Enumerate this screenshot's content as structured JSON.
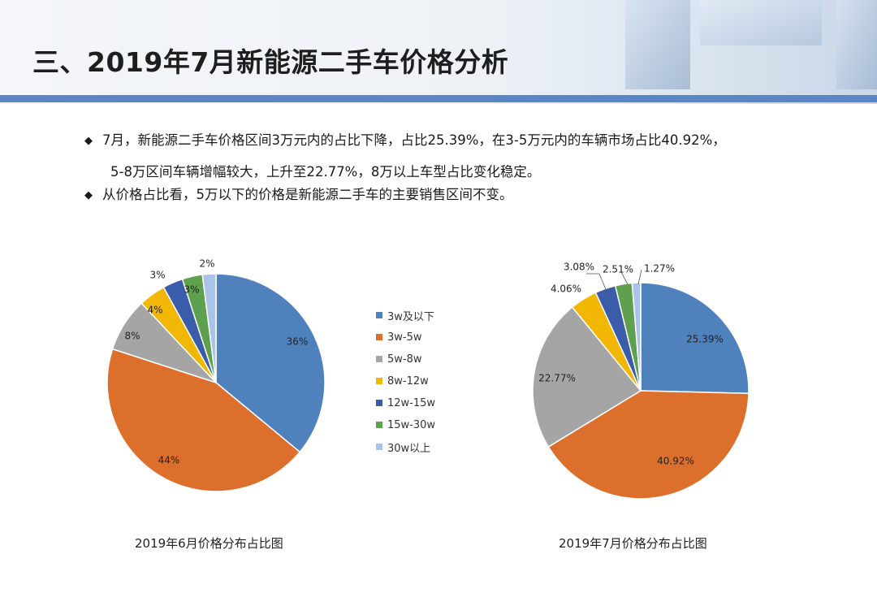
{
  "title": "三、2019年7月新能源二手车价格分析",
  "bullets": [
    {
      "mark": "◆",
      "line1": "7月，新能源二手车价格区间3万元内的占比下降，占比25.39%，在3-5万元内的车辆市场占比40.92%，",
      "line2": "5-8万区间车辆增幅较大，上升至22.77%，8万以上车型占比变化稳定。"
    },
    {
      "mark": "◆",
      "line1": "从价格占比看，5万以下的价格是新能源二手车的主要销售区间不变。",
      "line2": ""
    }
  ],
  "colors": {
    "header_bar": "#5b86c5"
  },
  "legend": [
    {
      "label": "3w及以下",
      "color": "#4f81bd"
    },
    {
      "label": "3w-5w",
      "color": "#dd6f2c"
    },
    {
      "label": "5w-8w",
      "color": "#a5a5a5"
    },
    {
      "label": "8w-12w",
      "color": "#f2b705"
    },
    {
      "label": "12w-15w",
      "color": "#3a5ca9"
    },
    {
      "label": "15w-30w",
      "color": "#5fa04e"
    },
    {
      "label": "30w以上",
      "color": "#a9c4e6"
    }
  ],
  "chart_data": [
    {
      "type": "pie",
      "title": "2019年6月价格分布占比图",
      "categories": [
        "3w及以下",
        "3w-5w",
        "5w-8w",
        "8w-12w",
        "12w-15w",
        "15w-30w",
        "30w以上"
      ],
      "values": [
        36,
        44,
        8,
        4,
        3,
        3,
        2
      ],
      "labels": [
        "36%",
        "44%",
        "8%",
        "4%",
        "3%",
        "3%",
        "2%"
      ]
    },
    {
      "type": "pie",
      "title": "2019年7月价格分布占比图",
      "categories": [
        "3w及以下",
        "3w-5w",
        "5w-8w",
        "8w-12w",
        "12w-15w",
        "15w-30w",
        "30w以上"
      ],
      "values": [
        25.39,
        40.92,
        22.77,
        4.06,
        3.08,
        2.51,
        1.27
      ],
      "labels": [
        "25.39%",
        "40.92%",
        "22.77%",
        "4.06%",
        "3.08%",
        "2.51%",
        "1.27%"
      ]
    }
  ]
}
